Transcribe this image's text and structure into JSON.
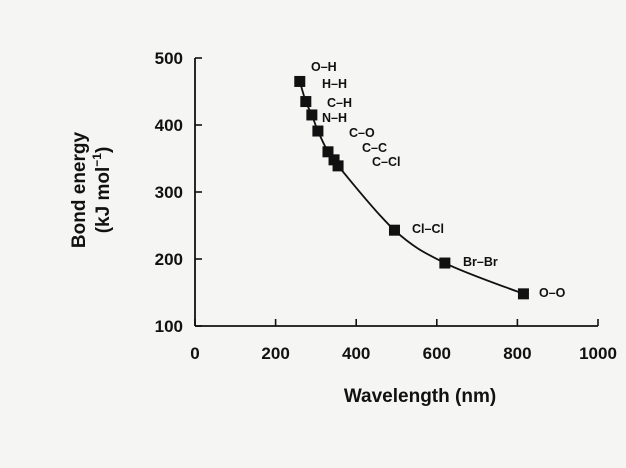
{
  "chart_data": {
    "type": "scatter",
    "title": "",
    "xlabel": "Wavelength (nm)",
    "ylabel_line1": "Bond energy",
    "ylabel_line2_base": "(kJ mol",
    "ylabel_line2_sup": "−1",
    "ylabel_line2_end": ")",
    "xlim": [
      0,
      1000
    ],
    "ylim": [
      100,
      500
    ],
    "x_ticks": [
      0,
      200,
      400,
      600,
      800,
      1000
    ],
    "y_ticks": [
      100,
      200,
      300,
      400,
      500
    ],
    "grid": false,
    "legend": "none",
    "curve": "smooth line through points",
    "colors": {
      "marker": "#111111",
      "line": "#111111",
      "background": "#f5f5f3"
    },
    "series": [
      {
        "points": [
          {
            "label": "O–H",
            "x": 260,
            "y": 465
          },
          {
            "label": "H–H",
            "x": 275,
            "y": 435
          },
          {
            "label": "C–H",
            "x": 290,
            "y": 415
          },
          {
            "label": "N–H",
            "x": 305,
            "y": 391
          },
          {
            "label": "C–O",
            "x": 330,
            "y": 360
          },
          {
            "label": "C–C",
            "x": 345,
            "y": 348
          },
          {
            "label": "C–Cl",
            "x": 355,
            "y": 339
          },
          {
            "label": "Cl–Cl",
            "x": 495,
            "y": 243
          },
          {
            "label": "Br–Br",
            "x": 620,
            "y": 194
          },
          {
            "label": "O–O",
            "x": 815,
            "y": 148
          }
        ]
      }
    ]
  }
}
